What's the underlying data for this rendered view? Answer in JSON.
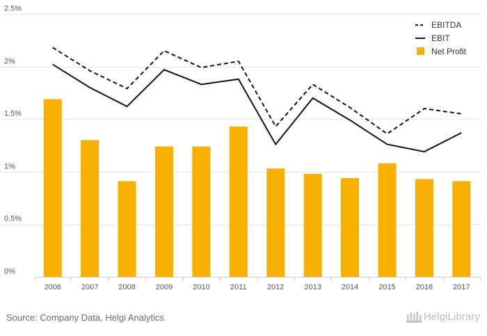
{
  "chart_data": {
    "type": "bar",
    "categories": [
      "2006",
      "2007",
      "2008",
      "2009",
      "2010",
      "2011",
      "2012",
      "2013",
      "2014",
      "2015",
      "2016",
      "2017"
    ],
    "series": [
      {
        "name": "Net Profit",
        "type": "bar",
        "color": "#F7AF00",
        "values": [
          1.69,
          1.3,
          0.91,
          1.24,
          1.24,
          1.43,
          1.03,
          0.98,
          0.94,
          1.08,
          0.93,
          0.91
        ]
      },
      {
        "name": "EBITDA",
        "type": "line",
        "style": "dashed",
        "color": "#111111",
        "values": [
          2.18,
          1.96,
          1.79,
          2.15,
          1.99,
          2.05,
          1.43,
          1.83,
          1.61,
          1.36,
          1.6,
          1.55
        ]
      },
      {
        "name": "EBIT",
        "type": "line",
        "style": "solid",
        "color": "#111111",
        "values": [
          2.02,
          1.8,
          1.62,
          1.97,
          1.83,
          1.88,
          1.26,
          1.7,
          1.49,
          1.26,
          1.19,
          1.37
        ]
      }
    ],
    "y_ticks": [
      "0%",
      "0.5%",
      "1%",
      "1.5%",
      "2%",
      "2.5%"
    ],
    "ylim": [
      0,
      2.5
    ],
    "grid": true,
    "legend_position": "top-right",
    "legend_order": [
      "EBITDA",
      "EBIT",
      "Net Profit"
    ]
  },
  "footer": {
    "source": "Source: Company Data, Helgi Analytics",
    "logo_text": "HelgiLibrary"
  }
}
